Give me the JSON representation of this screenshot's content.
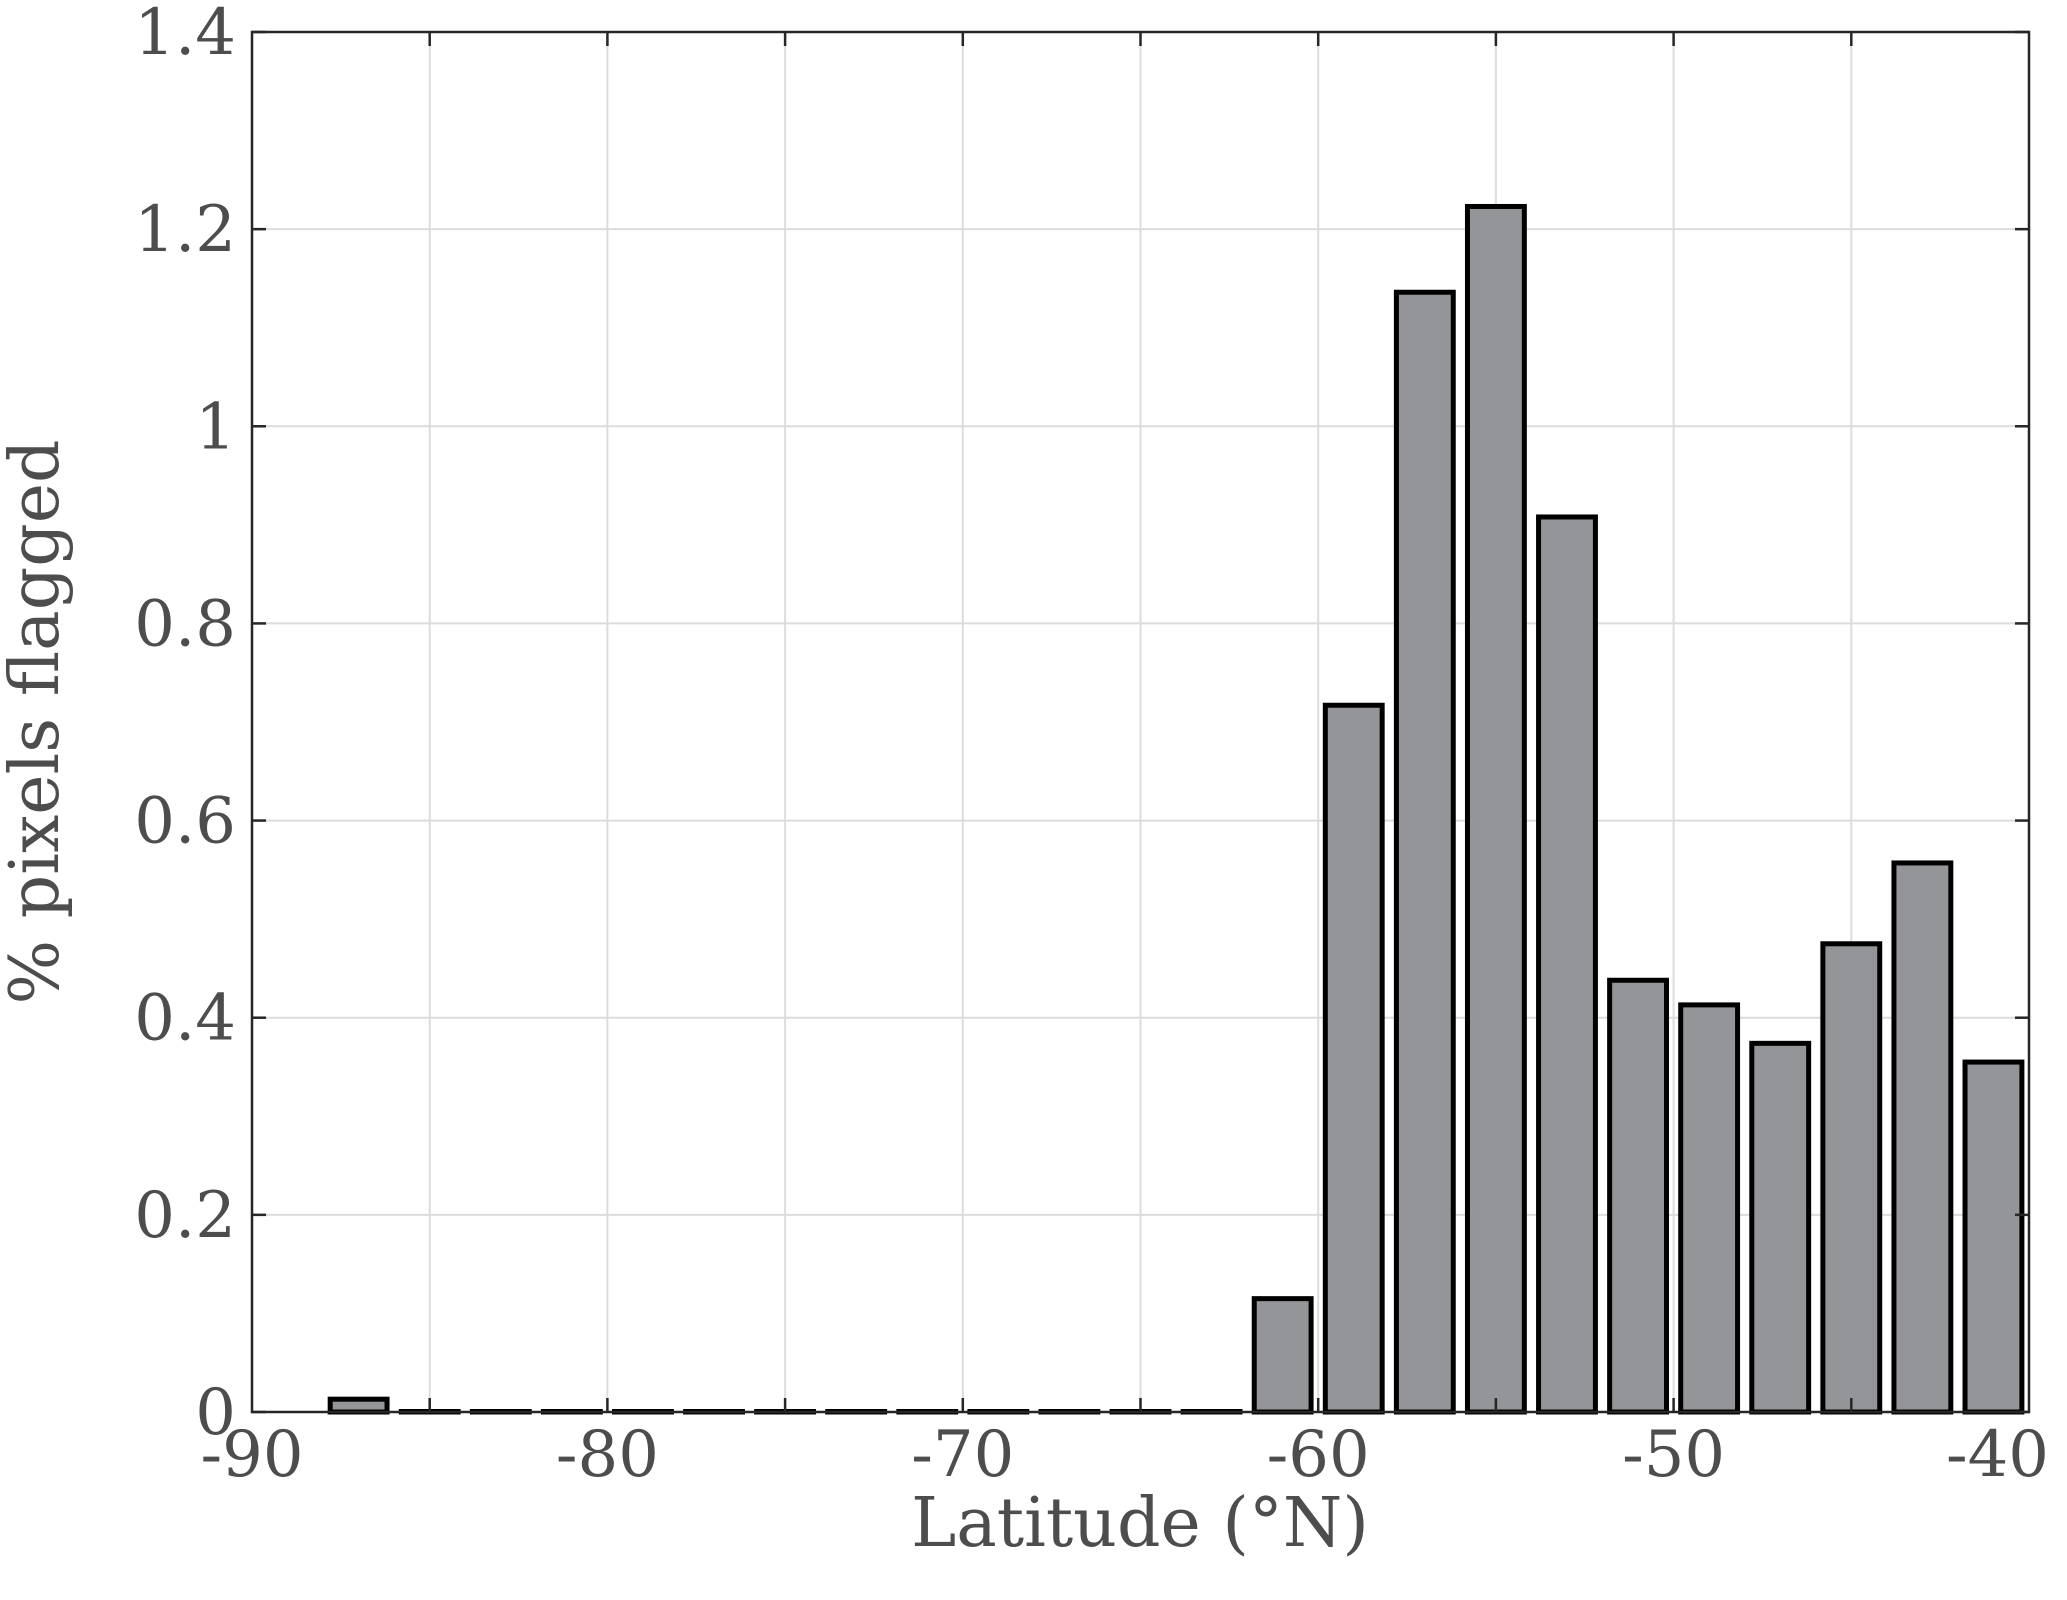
{
  "chart_data": {
    "type": "bar",
    "xlabel": "Latitude (°N)",
    "ylabel": "% pixels flagged",
    "xlim": [
      -90,
      -40
    ],
    "ylim": [
      0,
      1.4
    ],
    "xticks": [
      "-90",
      "-80",
      "-70",
      "-60",
      "-50",
      "-40"
    ],
    "yticks": [
      "0",
      "0.2",
      "0.4",
      "0.6",
      "0.8",
      "1",
      "1.2",
      "1.4"
    ],
    "grid": true,
    "x": [
      -87,
      -85,
      -83,
      -81,
      -79,
      -77,
      -75,
      -73,
      -71,
      -69,
      -67,
      -65,
      -63,
      -61,
      -59,
      -57,
      -55,
      -53,
      -51,
      -49,
      -47,
      -45,
      -43,
      -41
    ],
    "values": [
      0.013,
      0,
      0,
      0,
      0,
      0,
      0,
      0,
      0,
      0,
      0,
      0,
      0,
      0.115,
      0.717,
      1.136,
      1.223,
      0.908,
      0.438,
      0.413,
      0.374,
      0.475,
      0.557,
      0.355
    ],
    "bar_width": 1.6,
    "colors": {
      "bar_fill": "#939598",
      "bar_edge": "#000000",
      "text": "#4d4d4d"
    }
  }
}
